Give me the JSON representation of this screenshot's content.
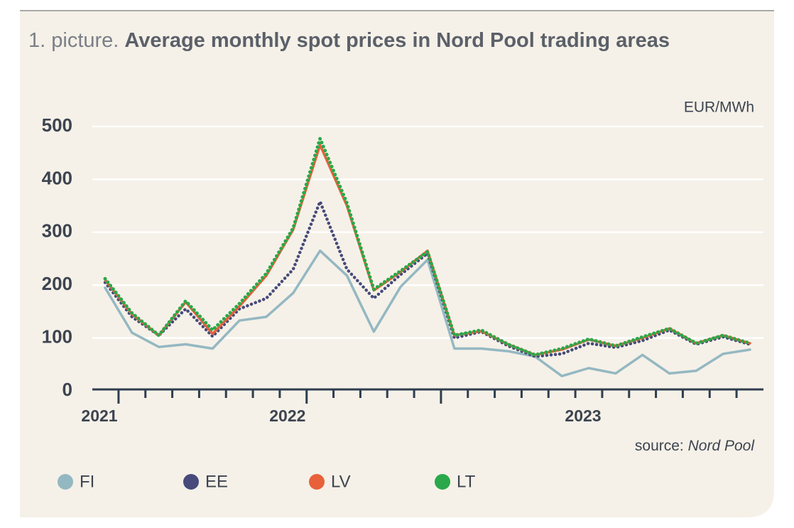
{
  "chart_data": {
    "type": "line",
    "title_prefix": "1. picture.",
    "title": "Average monthly spot prices in Nord Pool trading areas",
    "y_unit": "EUR/MWh",
    "source_label": "source:",
    "source": "Nord Pool",
    "categories": [
      "2021",
      null,
      null,
      null,
      null,
      null,
      null,
      "2022",
      null,
      null,
      null,
      null,
      null,
      null,
      null,
      null,
      null,
      null,
      "2023",
      null,
      null,
      null,
      null,
      null,
      null
    ],
    "ylim": [
      0,
      500
    ],
    "yticks": [
      0,
      100,
      200,
      300,
      400,
      500
    ],
    "grid": true,
    "series": [
      {
        "name": "FI",
        "color": "#94b8c2",
        "style": "solid",
        "values": [
          195,
          110,
          83,
          88,
          80,
          133,
          140,
          185,
          265,
          218,
          112,
          197,
          248,
          80,
          80,
          75,
          65,
          28,
          43,
          33,
          68,
          33,
          38,
          70,
          78
        ]
      },
      {
        "name": "EE",
        "color": "#474a7a",
        "style": "dotted",
        "values": [
          205,
          140,
          105,
          155,
          103,
          155,
          175,
          230,
          358,
          230,
          175,
          220,
          260,
          100,
          112,
          85,
          65,
          70,
          90,
          82,
          95,
          115,
          88,
          102,
          88
        ]
      },
      {
        "name": "LV",
        "color": "#e8613a",
        "style": "solid",
        "values": [
          210,
          145,
          105,
          168,
          108,
          160,
          218,
          305,
          465,
          350,
          190,
          225,
          265,
          105,
          113,
          88,
          68,
          78,
          97,
          85,
          100,
          118,
          90,
          105,
          90
        ]
      },
      {
        "name": "LT",
        "color": "#2aa84a",
        "style": "dotted",
        "values": [
          212,
          147,
          105,
          170,
          115,
          165,
          222,
          308,
          477,
          355,
          192,
          227,
          263,
          105,
          115,
          88,
          68,
          80,
          98,
          85,
          102,
          118,
          90,
          105,
          90
        ]
      }
    ]
  }
}
